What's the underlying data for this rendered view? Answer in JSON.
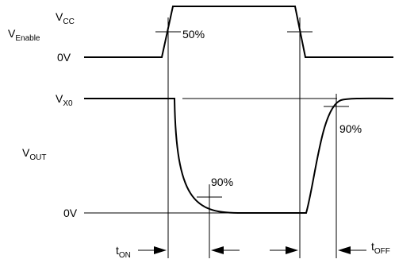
{
  "labels": {
    "vcc_main": "V",
    "vcc_sub": "CC",
    "venable_main": "V",
    "venable_sub": "Enable",
    "zero_v_top": "0V",
    "pct50": "50%",
    "vx0_main": "V",
    "vx0_sub": "X0",
    "vout_main": "V",
    "vout_sub": "OUT",
    "pct90_right": "90%",
    "pct90_left": "90%",
    "zero_v_bottom": "0V",
    "ton_main": "t",
    "ton_sub": "ON",
    "toff_main": "t",
    "toff_sub": "OFF"
  }
}
